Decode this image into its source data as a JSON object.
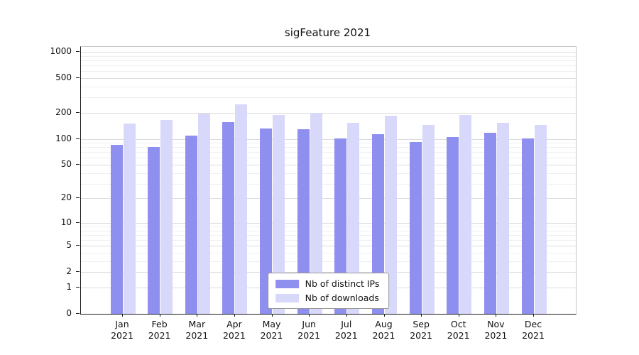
{
  "title": "sigFeature 2021",
  "chart_data": {
    "type": "bar",
    "title": "sigFeature 2021",
    "categories": [
      "Jan 2021",
      "Feb 2021",
      "Mar 2021",
      "Apr 2021",
      "May 2021",
      "Jun 2021",
      "Jul 2021",
      "Aug 2021",
      "Sep 2021",
      "Oct 2021",
      "Nov 2021",
      "Dec 2021"
    ],
    "series": [
      {
        "name": "Nb of distinct IPs",
        "color": "#8e8fee",
        "values": [
          85,
          80,
          110,
          155,
          132,
          130,
          102,
          114,
          92,
          104,
          117,
          101
        ]
      },
      {
        "name": "Nb of downloads",
        "color": "#d8d8fb",
        "values": [
          150,
          165,
          195,
          250,
          190,
          200,
          152,
          185,
          145,
          190,
          152,
          146
        ]
      }
    ],
    "xlabel": "",
    "ylabel": "",
    "y_scale": "log10(1+x)",
    "y_ticks": [
      0,
      1,
      2,
      5,
      10,
      20,
      50,
      100,
      200,
      500,
      1000
    ],
    "ylim": [
      0,
      1140
    ],
    "grid": true,
    "legend_position": "bottom-center"
  },
  "colors": {
    "spine_dark": "#1a1a1a",
    "spine_light": "#c9c9c9",
    "grid_major": "#dcdcdc",
    "grid_minor": "#efefef",
    "background": "#ffffff"
  }
}
